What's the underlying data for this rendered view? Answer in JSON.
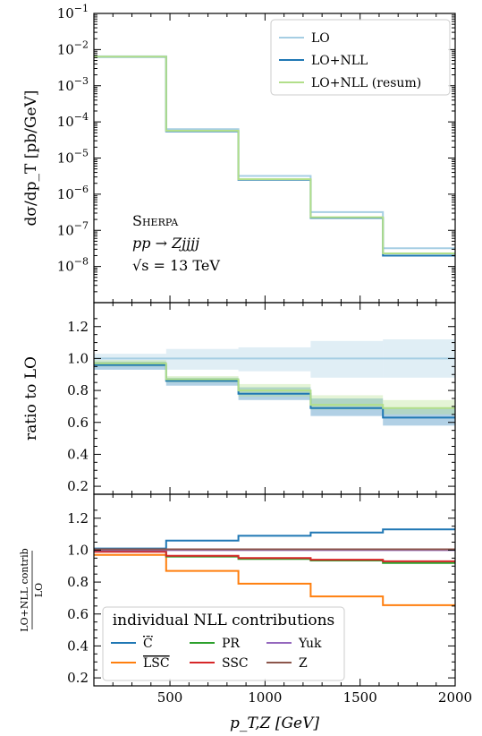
{
  "chart_data": [
    {
      "type": "line",
      "panel": "main",
      "ylabel": "dσ/dp_T [pb/GeV]",
      "yscale": "log",
      "ylim": [
        1e-09,
        0.1
      ],
      "xlim": [
        100,
        2000
      ],
      "x_edges": [
        100,
        480,
        860,
        1240,
        1620,
        2000
      ],
      "y_tick_labels": [
        "10^-8",
        "10^-7",
        "10^-6",
        "10^-5",
        "10^-4",
        "10^-3",
        "10^-2",
        "10^-1"
      ],
      "annotation": [
        "Sherpa",
        "pp → Zjjjj",
        "√s = 13 TeV"
      ],
      "legend_position": "top-right",
      "series": [
        {
          "name": "LO",
          "color": "#a6cee3",
          "values": [
            0.0065,
            6.3e-05,
            3.2e-06,
            3.2e-07,
            3.2e-08
          ]
        },
        {
          "name": "LO+NLL",
          "color": "#1f78b4",
          "values": [
            0.0063,
            5.5e-05,
            2.5e-06,
            2.2e-07,
            2e-08
          ]
        },
        {
          "name": "LO+NLL (resum)",
          "color": "#b2df8a",
          "values": [
            0.0064,
            5.7e-05,
            2.6e-06,
            2.3e-07,
            2.3e-08
          ]
        }
      ]
    },
    {
      "type": "line",
      "panel": "ratio",
      "ylabel": "ratio to LO",
      "ylim": [
        0.15,
        1.35
      ],
      "x_edges": [
        100,
        480,
        860,
        1240,
        1620,
        2000
      ],
      "y_tick_labels": [
        "0.2",
        "0.4",
        "0.6",
        "0.8",
        "1.0",
        "1.2"
      ],
      "series": [
        {
          "name": "LO",
          "color": "#a6cee3",
          "values": [
            1.0,
            1.0,
            1.0,
            1.0,
            1.0
          ],
          "band_low": [
            0.95,
            0.93,
            0.92,
            0.88,
            0.88
          ],
          "band_high": [
            1.03,
            1.06,
            1.07,
            1.11,
            1.12
          ]
        },
        {
          "name": "LO+NLL",
          "color": "#1f78b4",
          "values": [
            0.96,
            0.86,
            0.78,
            0.69,
            0.63
          ],
          "band_low": [
            0.93,
            0.83,
            0.74,
            0.64,
            0.58
          ],
          "band_high": [
            0.98,
            0.88,
            0.82,
            0.75,
            0.69
          ]
        },
        {
          "name": "LO+NLL (resum)",
          "color": "#b2df8a",
          "values": [
            0.97,
            0.87,
            0.8,
            0.71,
            0.69
          ],
          "band_low": [
            0.95,
            0.85,
            0.76,
            0.68,
            0.65
          ],
          "band_high": [
            0.99,
            0.89,
            0.84,
            0.77,
            0.74
          ]
        }
      ]
    },
    {
      "type": "line",
      "panel": "contrib",
      "ylabel_num": "LO+NLL contrib",
      "ylabel_den": "LO",
      "xlabel": "p_T,Z [GeV]",
      "ylim": [
        0.15,
        1.35
      ],
      "x_edges": [
        100,
        480,
        860,
        1240,
        1620,
        2000
      ],
      "x_tick_labels": [
        "500",
        "1000",
        "1500",
        "2000"
      ],
      "y_tick_labels": [
        "0.2",
        "0.4",
        "0.6",
        "0.8",
        "1.0",
        "1.2"
      ],
      "legend_title": "individual NLL contributions",
      "legend_position": "bottom-left",
      "series": [
        {
          "name": "C̄",
          "color": "#1f77b4",
          "values": [
            1.01,
            1.06,
            1.09,
            1.11,
            1.13
          ]
        },
        {
          "name": "LSC",
          "color": "#ff7f0e",
          "values": [
            0.97,
            0.87,
            0.79,
            0.71,
            0.655
          ]
        },
        {
          "name": "PR",
          "color": "#2ca02c",
          "values": [
            0.995,
            0.96,
            0.945,
            0.935,
            0.92
          ]
        },
        {
          "name": "SSC",
          "color": "#d62728",
          "values": [
            0.99,
            0.965,
            0.95,
            0.94,
            0.93
          ]
        },
        {
          "name": "Yuk",
          "color": "#9467bd",
          "values": [
            1.0,
            1.0,
            1.0,
            1.0,
            1.0
          ]
        },
        {
          "name": "Z",
          "color": "#8c564b",
          "values": [
            1.005,
            1.005,
            1.005,
            1.005,
            1.005
          ]
        }
      ]
    }
  ]
}
